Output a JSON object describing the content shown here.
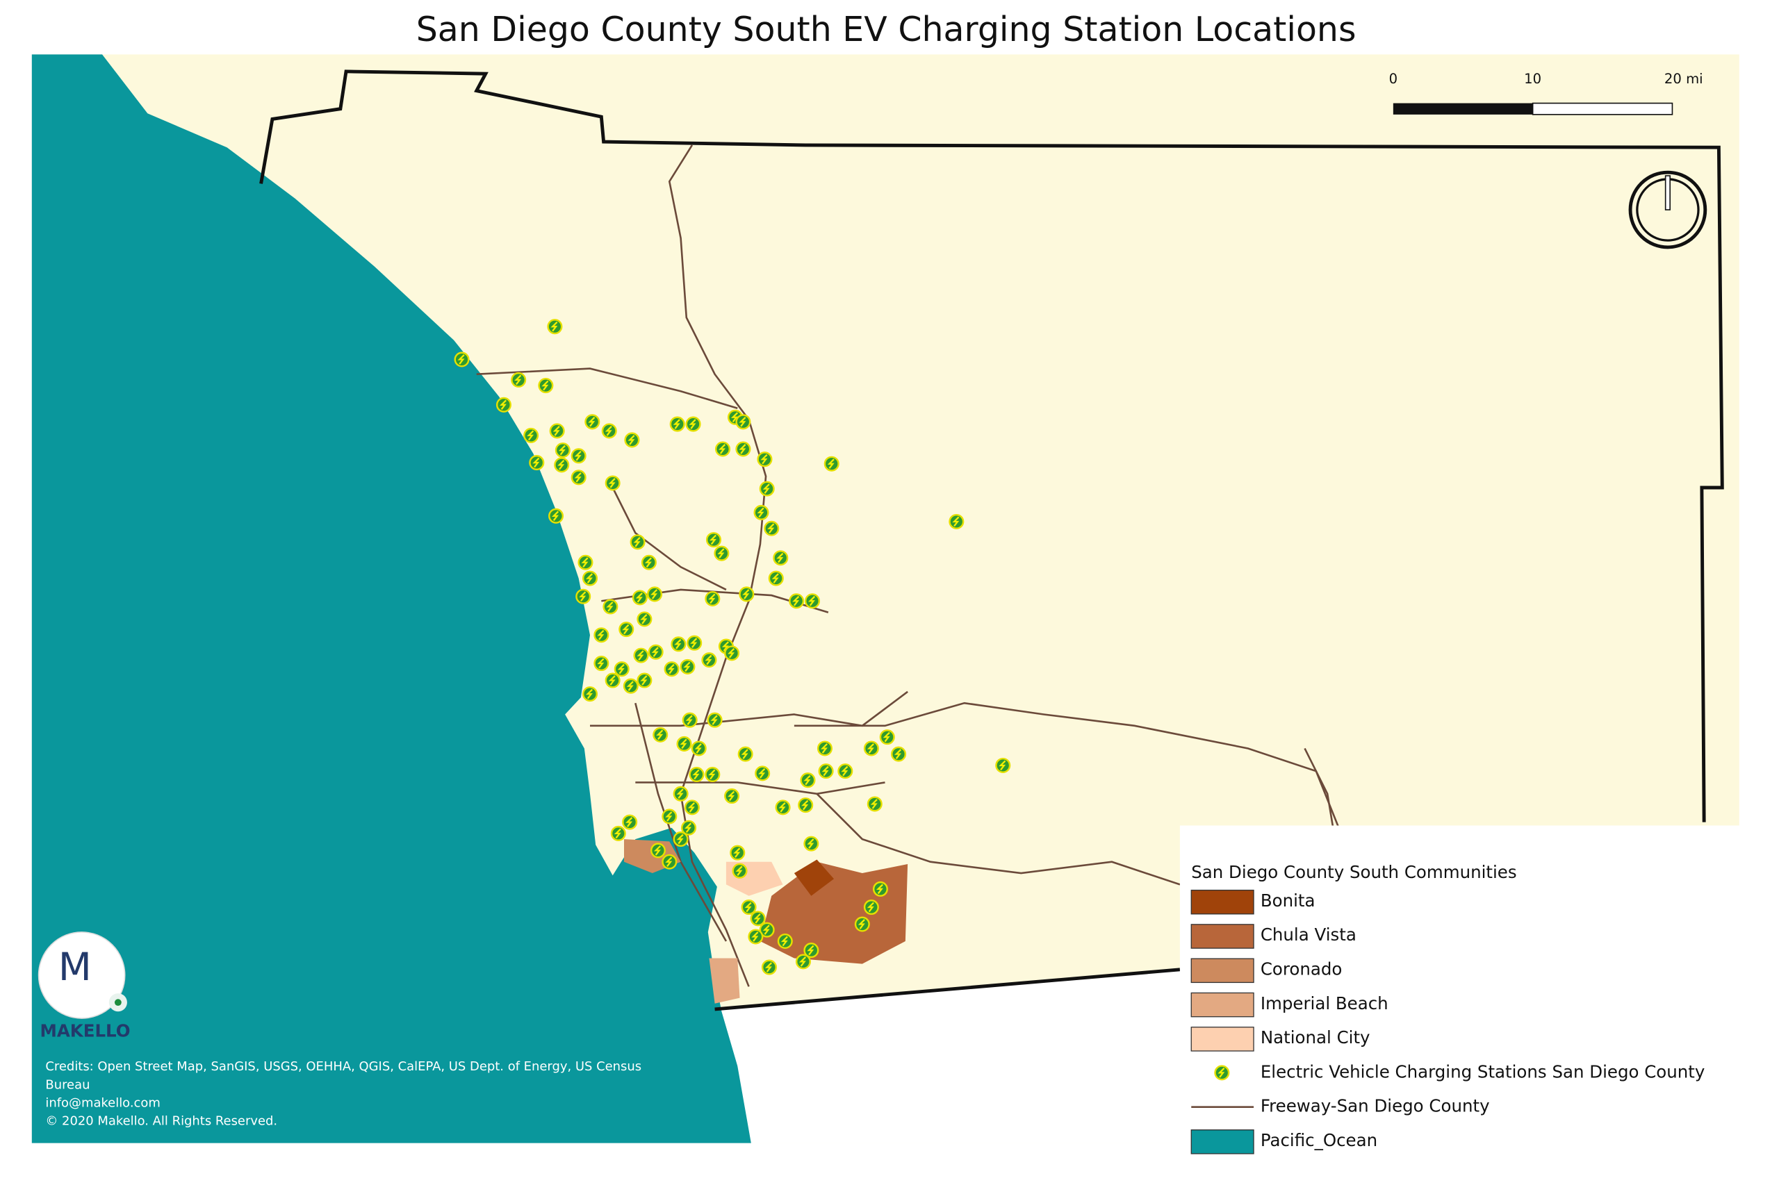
{
  "title": "San Diego County South EV Charging Station Locations",
  "scale_bar": {
    "labels": [
      "0",
      "10",
      "20 mi"
    ]
  },
  "legend": {
    "title": "San Diego County South Communities",
    "items": [
      {
        "label": "Bonita",
        "color": "#a0430a",
        "symbol": "fill"
      },
      {
        "label": "Chula Vista",
        "color": "#b8663a",
        "symbol": "fill"
      },
      {
        "label": "Coronado",
        "color": "#cd8a5e",
        "symbol": "fill"
      },
      {
        "label": "Imperial Beach",
        "color": "#e3a982",
        "symbol": "fill"
      },
      {
        "label": "National City",
        "color": "#fdd0b0",
        "symbol": "fill"
      },
      {
        "label": "Electric Vehicle Charging Stations San Diego County",
        "color": "#2e9a2f",
        "symbol": "station"
      },
      {
        "label": "Freeway-San Diego County",
        "color": "#6b4a3a",
        "symbol": "line"
      },
      {
        "label": "Pacific_Ocean",
        "color": "#0a979c",
        "symbol": "fill"
      }
    ]
  },
  "logo": {
    "initial": "M",
    "text": "MAKELLO"
  },
  "credits": [
    "Credits: Open Street Map, SanGIS, USGS, OEHHA, QGIS, CalEPA, US Dept. of Energy, US Census",
    "Bureau",
    "info@makello.com",
    "© 2020 Makello. All Rights Reserved."
  ]
}
